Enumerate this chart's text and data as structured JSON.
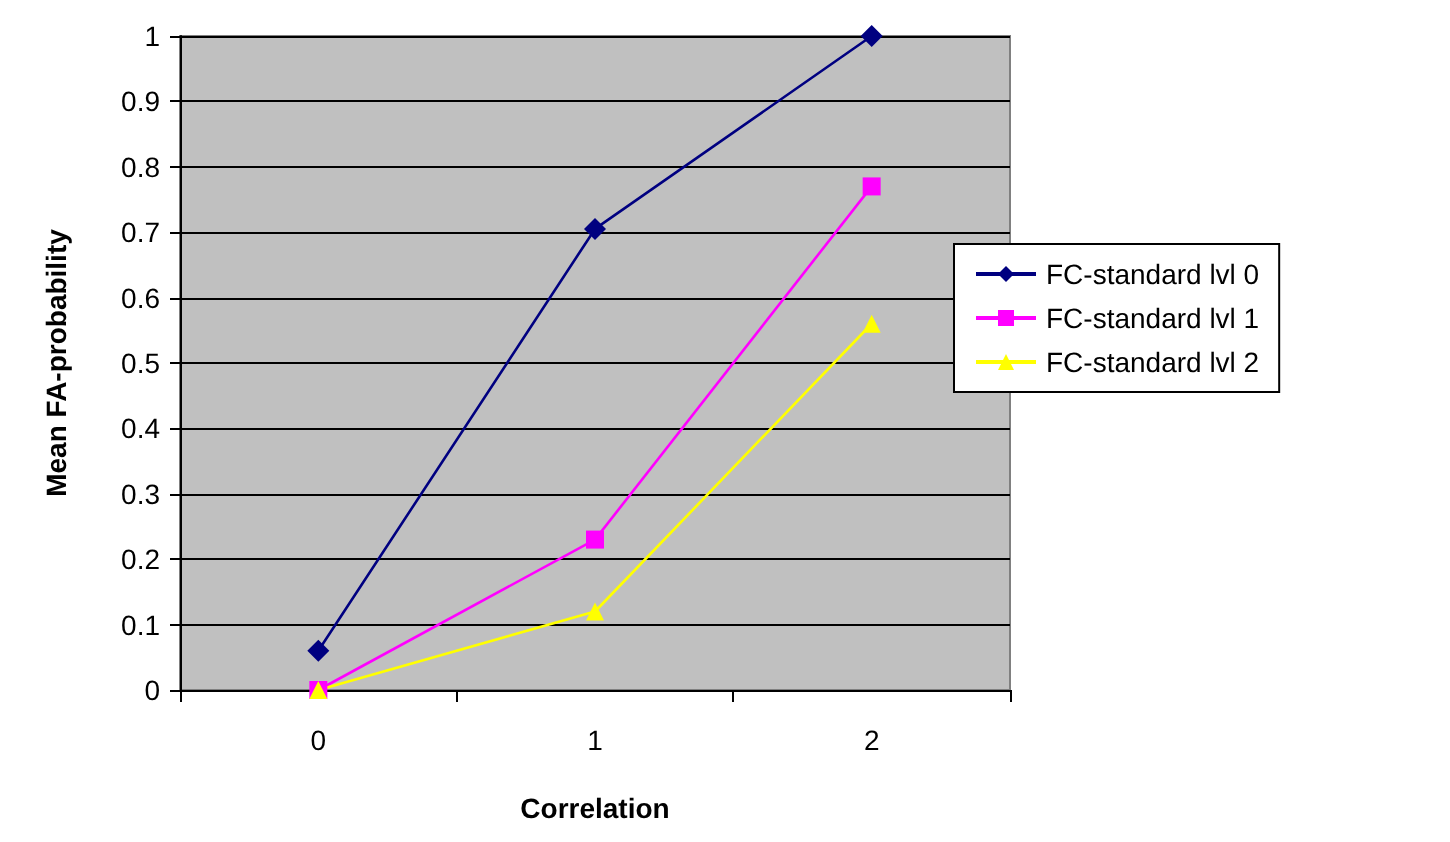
{
  "chart_data": {
    "type": "line",
    "xlabel": "Correlation",
    "ylabel": "Mean FA-probability",
    "categories": [
      "0",
      "1",
      "2"
    ],
    "series": [
      {
        "name": "FC-standard lvl 0",
        "color": "#000080",
        "marker": "diamond",
        "values": [
          0.06,
          0.705,
          1.0
        ]
      },
      {
        "name": "FC-standard lvl 1",
        "color": "#ff00ff",
        "marker": "square",
        "values": [
          0.0,
          0.23,
          0.77
        ]
      },
      {
        "name": "FC-standard lvl 2",
        "color": "#ffff00",
        "marker": "triangle",
        "values": [
          0.0,
          0.12,
          0.56
        ]
      }
    ],
    "ylim": [
      0,
      1
    ],
    "yticks": [
      0,
      0.1,
      0.2,
      0.3,
      0.4,
      0.5,
      0.6,
      0.7,
      0.8,
      0.9,
      1
    ],
    "grid": "y",
    "legend": "right",
    "line_style": "solid"
  }
}
